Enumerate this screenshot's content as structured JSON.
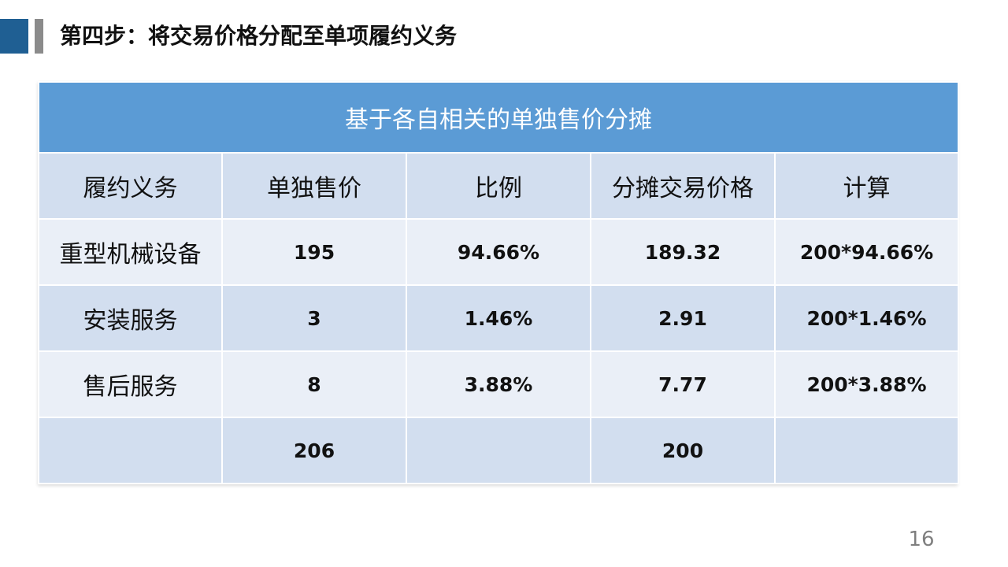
{
  "slide": {
    "title": "第四步：将交易价格分配至单项履约义务",
    "page_number": "16"
  },
  "table": {
    "caption": "基于各自相关的单独售价分摊",
    "headers": [
      "履约义务",
      "单独售价",
      "比例",
      "分摊交易价格",
      "计算"
    ],
    "rows": [
      [
        "重型机械设备",
        "195",
        "94.66%",
        "189.32",
        "200*94.66%"
      ],
      [
        "安装服务",
        "3",
        "1.46%",
        "2.91",
        "200*1.46%"
      ],
      [
        "售后服务",
        "8",
        "3.88%",
        "7.77",
        "200*3.88%"
      ],
      [
        "",
        "206",
        "",
        "200",
        ""
      ]
    ]
  },
  "colors": {
    "accent_blue": "#1f5f93",
    "header_blue": "#5b9bd5",
    "row_dark": "#d2deef",
    "row_light": "#eaeff7"
  }
}
